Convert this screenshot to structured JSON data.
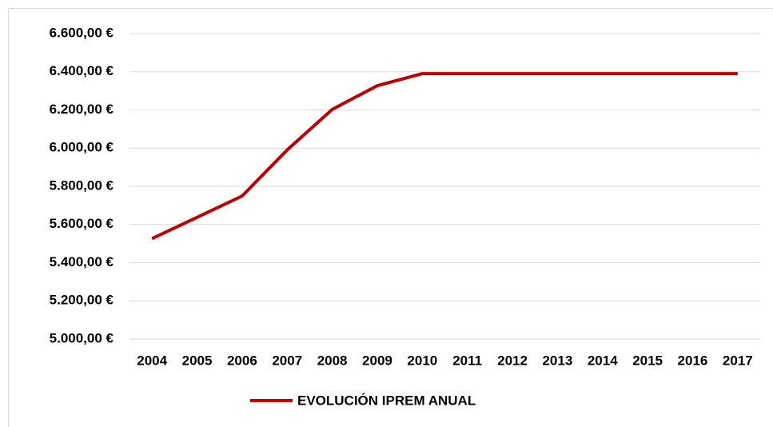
{
  "chart_data": {
    "type": "line",
    "categories": [
      "2004",
      "2005",
      "2006",
      "2007",
      "2008",
      "2009",
      "2010",
      "2011",
      "2012",
      "2013",
      "2014",
      "2015",
      "2016",
      "2017"
    ],
    "series": [
      {
        "name": "EVOLUCIÓN IPREM ANUAL",
        "color": "#c00000",
        "values": [
          5526,
          5637.6,
          5749.2,
          5990.4,
          6202.8,
          6326.88,
          6390.12,
          6390.12,
          6390.12,
          6390.12,
          6390.12,
          6390.12,
          6390.12,
          6390.12
        ]
      }
    ],
    "ylim": [
      5000,
      6600
    ],
    "yticks": [
      {
        "value": 5000,
        "label": "5.000,00 €"
      },
      {
        "value": 5200,
        "label": "5.200,00 €"
      },
      {
        "value": 5400,
        "label": "5.400,00 €"
      },
      {
        "value": 5600,
        "label": "5.600,00 €"
      },
      {
        "value": 5800,
        "label": "5.800,00 €"
      },
      {
        "value": 6000,
        "label": "6.000,00 €"
      },
      {
        "value": 6200,
        "label": "6.200,00 €"
      },
      {
        "value": 6400,
        "label": "6.400,00 €"
      },
      {
        "value": 6600,
        "label": "6.600,00 €"
      }
    ],
    "grid": true,
    "legend": "bottom"
  }
}
